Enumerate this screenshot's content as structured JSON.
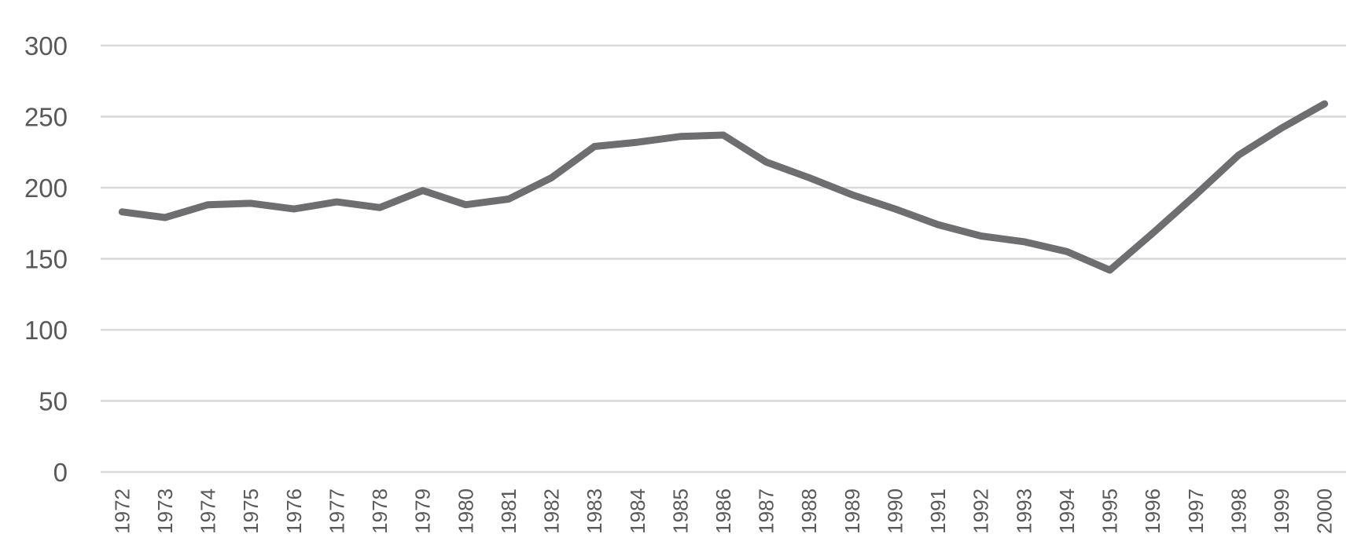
{
  "chart_data": {
    "type": "line",
    "title": "",
    "xlabel": "",
    "ylabel": "",
    "categories": [
      "1972",
      "1973",
      "1974",
      "1975",
      "1976",
      "1977",
      "1978",
      "1979",
      "1980",
      "1981",
      "1982",
      "1983",
      "1984",
      "1985",
      "1986",
      "1987",
      "1988",
      "1989",
      "1990",
      "1991",
      "1992",
      "1993",
      "1994",
      "1995",
      "1996",
      "1997",
      "1998",
      "1999",
      "2000"
    ],
    "series": [
      {
        "color": "#6e6e70",
        "values": [
          183,
          179,
          188,
          189,
          185,
          190,
          186,
          198,
          188,
          192,
          207,
          229,
          232,
          236,
          237,
          218,
          207,
          195,
          185,
          174,
          166,
          162,
          155,
          142,
          168,
          195,
          223,
          242,
          259
        ]
      }
    ],
    "ylim": [
      0,
      300
    ],
    "yticks": [
      0,
      50,
      100,
      150,
      200,
      250,
      300
    ],
    "grid": true,
    "gridColor": "#d9d9d9"
  }
}
